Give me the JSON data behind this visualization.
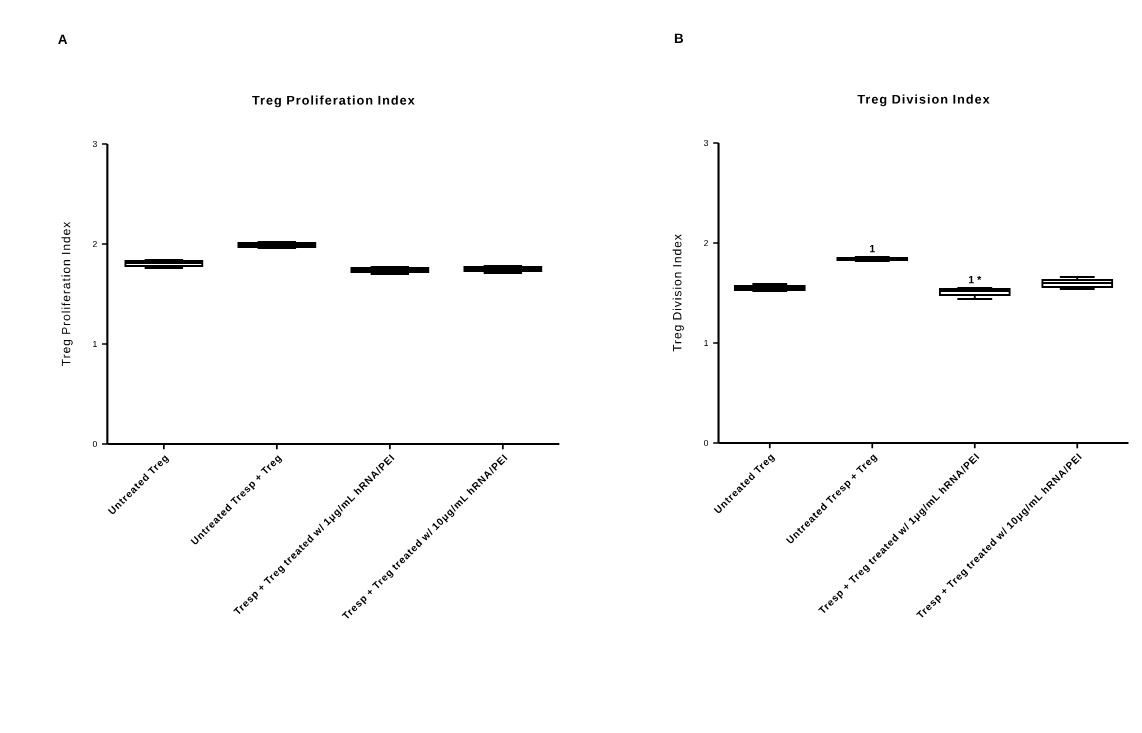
{
  "chart_data": [
    {
      "type": "box",
      "title": "Treg  Proliferation Index",
      "ylabel": "Treg Proliferation Index",
      "categories": [
        "Untreated Treg",
        "Untreated Tresp + Treg",
        "Tresp + Treg treated w/ 1μg/mL hRNA/PEI",
        "Tresp + Treg treated w/ 10μg/mL hRNA/PEI"
      ],
      "ylim": [
        0,
        3
      ],
      "yticks": [
        0,
        1,
        2,
        3
      ],
      "boxes": [
        {
          "low": 1.76,
          "q1": 1.78,
          "median": 1.81,
          "q3": 1.83,
          "high": 1.84
        },
        {
          "low": 1.96,
          "q1": 1.97,
          "median": 1.99,
          "q3": 2.01,
          "high": 2.02
        },
        {
          "low": 1.7,
          "q1": 1.72,
          "median": 1.74,
          "q3": 1.76,
          "high": 1.77
        },
        {
          "low": 1.71,
          "q1": 1.73,
          "median": 1.75,
          "q3": 1.77,
          "high": 1.78
        }
      ],
      "annotations": [
        "A"
      ]
    },
    {
      "type": "box",
      "title": "Treg Division Index",
      "ylabel": "Treg Division Index",
      "categories": [
        "Untreated Treg",
        "Untreated Tresp + Treg",
        "Tresp + Treg treated w/ 1μg/mL hRNA/PEI",
        "Tresp + Treg treated w/ 10μg/mL hRNA/PEI"
      ],
      "ylim": [
        0,
        3
      ],
      "yticks": [
        0,
        1,
        2,
        3
      ],
      "boxes": [
        {
          "low": 1.52,
          "q1": 1.53,
          "median": 1.55,
          "q3": 1.57,
          "high": 1.59
        },
        {
          "low": 1.82,
          "q1": 1.83,
          "median": 1.84,
          "q3": 1.85,
          "high": 1.86
        },
        {
          "low": 1.44,
          "q1": 1.48,
          "median": 1.52,
          "q3": 1.54,
          "high": 1.55
        },
        {
          "low": 1.54,
          "q1": 1.56,
          "median": 1.6,
          "q3": 1.63,
          "high": 1.66
        }
      ],
      "annotations": [
        "B",
        "1",
        "1 *"
      ]
    }
  ]
}
